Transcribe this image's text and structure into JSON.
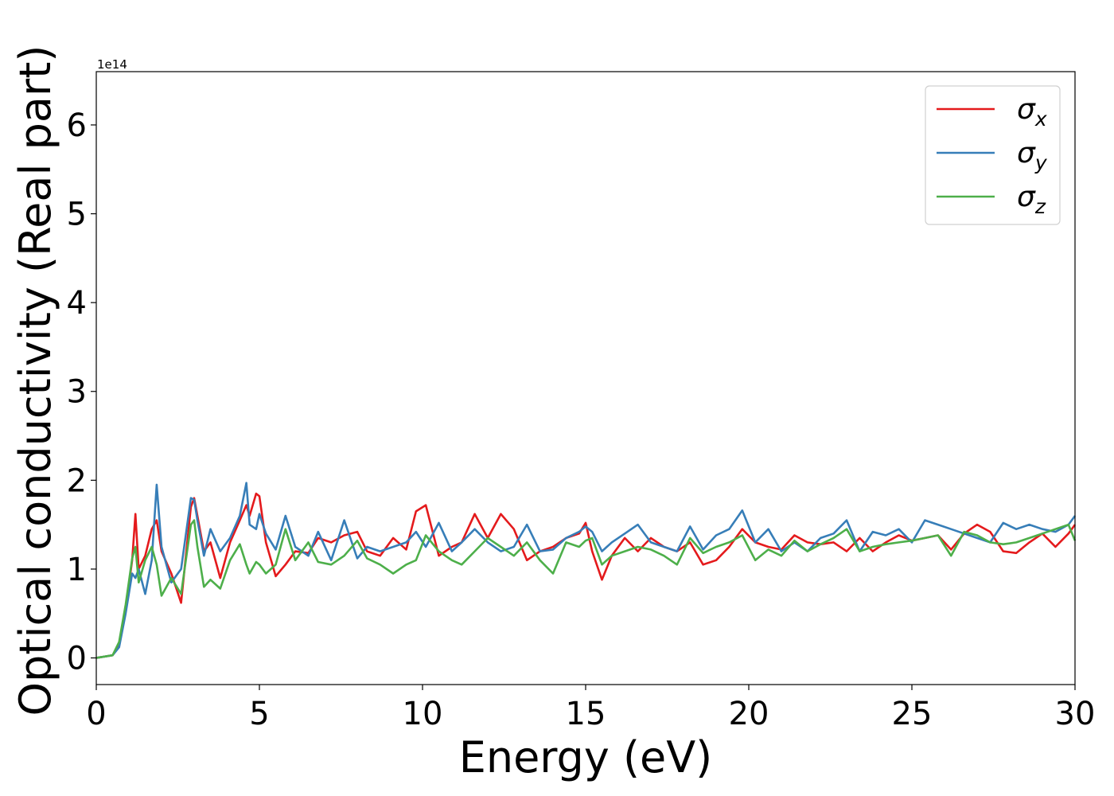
{
  "chart_data": {
    "type": "line",
    "title": "",
    "xlabel": "Energy (eV)",
    "ylabel": "Optical conductivity (Real part)",
    "y_offset_label": "1e14",
    "y_scale": 100000000000000.0,
    "xlim": [
      0,
      30
    ],
    "ylim": [
      -0.3,
      6.6
    ],
    "x_ticks": [
      0,
      5,
      10,
      15,
      20,
      25,
      30
    ],
    "y_ticks": [
      0,
      1,
      2,
      3,
      4,
      5,
      6
    ],
    "grid": false,
    "legend_position": "top-right",
    "x": [
      0,
      0.5,
      0.7,
      0.9,
      1.1,
      1.2,
      1.3,
      1.5,
      1.7,
      1.85,
      2.0,
      2.3,
      2.6,
      2.9,
      3.0,
      3.1,
      3.3,
      3.5,
      3.8,
      4.1,
      4.4,
      4.6,
      4.7,
      4.9,
      5.0,
      5.2,
      5.5,
      5.8,
      6.1,
      6.5,
      6.8,
      7.2,
      7.6,
      8.0,
      8.3,
      8.7,
      9.1,
      9.5,
      9.8,
      10.1,
      10.5,
      10.9,
      11.2,
      11.6,
      12.0,
      12.4,
      12.8,
      13.2,
      13.6,
      14.0,
      14.4,
      14.8,
      15.0,
      15.2,
      15.5,
      15.8,
      16.2,
      16.6,
      17.0,
      17.4,
      17.8,
      18.2,
      18.6,
      19.0,
      19.4,
      19.8,
      20.2,
      20.6,
      21.0,
      21.4,
      21.8,
      22.2,
      22.6,
      23.0,
      23.4,
      23.8,
      24.2,
      24.6,
      25.0,
      25.4,
      25.8,
      26.2,
      26.6,
      27.0,
      27.4,
      27.8,
      28.2,
      28.6,
      29.0,
      29.4,
      29.8,
      30.0
    ],
    "series": [
      {
        "name": "σx",
        "sub": "x",
        "color": "#e41a1c",
        "values": [
          0,
          0.03,
          0.15,
          0.55,
          1.1,
          1.62,
          1.0,
          1.15,
          1.45,
          1.55,
          1.2,
          0.95,
          0.62,
          1.7,
          1.8,
          1.6,
          1.2,
          1.3,
          0.9,
          1.3,
          1.55,
          1.72,
          1.6,
          1.85,
          1.82,
          1.3,
          0.92,
          1.05,
          1.2,
          1.18,
          1.35,
          1.3,
          1.38,
          1.42,
          1.2,
          1.15,
          1.35,
          1.22,
          1.65,
          1.72,
          1.15,
          1.25,
          1.3,
          1.62,
          1.35,
          1.62,
          1.45,
          1.1,
          1.2,
          1.25,
          1.35,
          1.4,
          1.52,
          1.2,
          0.88,
          1.15,
          1.35,
          1.2,
          1.35,
          1.25,
          1.2,
          1.3,
          1.05,
          1.1,
          1.25,
          1.45,
          1.3,
          1.25,
          1.22,
          1.38,
          1.3,
          1.28,
          1.3,
          1.2,
          1.35,
          1.2,
          1.3,
          1.38,
          1.32,
          1.35,
          1.38,
          1.22,
          1.4,
          1.5,
          1.42,
          1.2,
          1.18,
          1.3,
          1.4,
          1.25,
          1.4,
          1.5
        ]
      },
      {
        "name": "σy",
        "sub": "y",
        "color": "#377eb8",
        "values": [
          0,
          0.03,
          0.12,
          0.5,
          0.95,
          0.9,
          1.0,
          0.72,
          1.1,
          1.95,
          1.25,
          0.85,
          1.0,
          1.8,
          1.78,
          1.55,
          1.15,
          1.45,
          1.2,
          1.35,
          1.6,
          1.97,
          1.5,
          1.45,
          1.62,
          1.4,
          1.22,
          1.6,
          1.25,
          1.15,
          1.42,
          1.1,
          1.55,
          1.12,
          1.25,
          1.2,
          1.25,
          1.3,
          1.42,
          1.25,
          1.52,
          1.2,
          1.3,
          1.45,
          1.3,
          1.2,
          1.25,
          1.5,
          1.2,
          1.22,
          1.35,
          1.42,
          1.48,
          1.42,
          1.2,
          1.3,
          1.4,
          1.5,
          1.3,
          1.25,
          1.2,
          1.48,
          1.22,
          1.38,
          1.45,
          1.66,
          1.3,
          1.45,
          1.2,
          1.3,
          1.2,
          1.35,
          1.4,
          1.55,
          1.2,
          1.42,
          1.38,
          1.45,
          1.3,
          1.55,
          1.5,
          1.45,
          1.4,
          1.35,
          1.3,
          1.52,
          1.45,
          1.5,
          1.45,
          1.42,
          1.5,
          1.6
        ]
      },
      {
        "name": "σz",
        "sub": "z",
        "color": "#4daf4a",
        "values": [
          0,
          0.03,
          0.18,
          0.6,
          1.12,
          1.25,
          0.85,
          1.1,
          1.25,
          1.05,
          0.7,
          0.9,
          0.72,
          1.5,
          1.55,
          1.25,
          0.8,
          0.88,
          0.78,
          1.1,
          1.28,
          1.05,
          0.95,
          1.08,
          1.05,
          0.95,
          1.05,
          1.45,
          1.1,
          1.3,
          1.08,
          1.05,
          1.15,
          1.32,
          1.12,
          1.05,
          0.95,
          1.05,
          1.1,
          1.38,
          1.2,
          1.1,
          1.05,
          1.2,
          1.35,
          1.25,
          1.15,
          1.3,
          1.1,
          0.95,
          1.3,
          1.25,
          1.32,
          1.35,
          1.05,
          1.15,
          1.2,
          1.25,
          1.22,
          1.15,
          1.05,
          1.35,
          1.18,
          1.25,
          1.3,
          1.38,
          1.1,
          1.22,
          1.15,
          1.32,
          1.2,
          1.28,
          1.35,
          1.45,
          1.2,
          1.25,
          1.28,
          1.3,
          1.32,
          1.35,
          1.38,
          1.15,
          1.42,
          1.38,
          1.3,
          1.28,
          1.3,
          1.35,
          1.4,
          1.45,
          1.5,
          1.32
        ]
      }
    ]
  }
}
